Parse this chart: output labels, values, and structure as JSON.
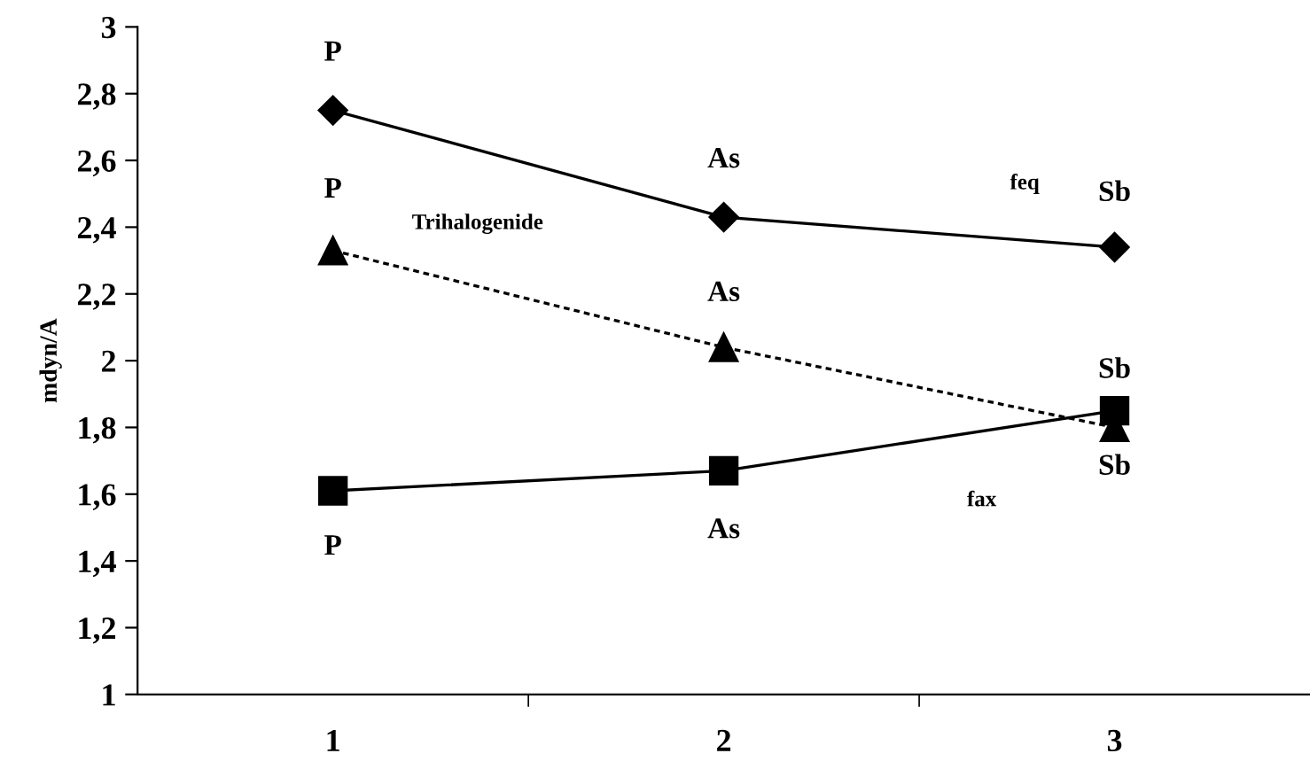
{
  "chart_data": {
    "type": "line",
    "ylabel": "mdyn/A",
    "categories": [
      "1",
      "2",
      "3"
    ],
    "ylim": [
      1,
      3
    ],
    "yticks": [
      1,
      {
        "value": 1.2,
        "label": "1,2"
      },
      {
        "value": 1.4,
        "label": "1,4"
      },
      {
        "value": 1.6,
        "label": "1,6"
      },
      {
        "value": 1.8,
        "label": "1,8"
      },
      2,
      {
        "value": 2.2,
        "label": "2,2"
      },
      {
        "value": 2.4,
        "label": "2,4"
      },
      {
        "value": 2.6,
        "label": "2,6"
      },
      {
        "value": 2.8,
        "label": "2,8"
      },
      3
    ],
    "grid": false,
    "series": [
      {
        "color": "#000000",
        "values": [
          2.75,
          2.43,
          2.34
        ],
        "marker": "diamond",
        "line_style": "solid"
      },
      {
        "color": "#000000",
        "values": [
          2.33,
          2.04,
          1.8
        ],
        "marker": "triangle",
        "line_style": "dotted"
      },
      {
        "color": "#000000",
        "values": [
          1.61,
          1.67,
          1.85
        ],
        "marker": "square",
        "line_style": "solid"
      }
    ],
    "annotations": [
      "P",
      "As",
      "Sb",
      "P",
      "As",
      "Sb",
      "P",
      "As",
      "Sb",
      "Trihalogenide",
      "feq",
      "fax"
    ]
  }
}
